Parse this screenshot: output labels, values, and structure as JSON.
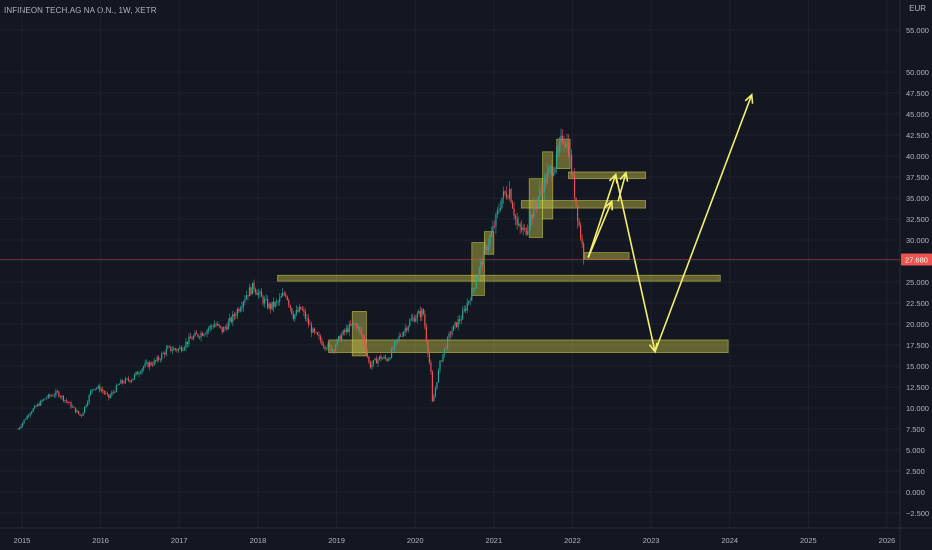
{
  "header": {
    "title": "INFINEON TECH.AG NA O.N., 1W, XETR",
    "currency": "EUR",
    "gear_icon": "settings-icon"
  },
  "colors": {
    "background": "#131722",
    "grid": "#1e222d",
    "up": "#26a69a",
    "down": "#ef5350",
    "zone": "#c7c34a",
    "arrow": "#f5ee6e",
    "price_line": "#ef5350"
  },
  "chart_data": {
    "type": "candlestick",
    "title": "INFINEON TECH.AG NA O.N., 1W, XETR",
    "ylim": [
      -3.5,
      58
    ],
    "xlim": [
      2014.9,
      2026.2
    ],
    "y_ticks": [
      -2.5,
      0,
      2.5,
      5,
      7.5,
      10,
      12.5,
      15,
      17.5,
      20,
      22.5,
      25,
      27.5,
      30,
      32.5,
      35,
      37.5,
      40,
      42.5,
      45,
      47.5,
      50,
      55
    ],
    "y_tick_labels": [
      "−2.500",
      "0.000",
      "2.500",
      "5.000",
      "7.500",
      "10.000",
      "12.500",
      "15.000",
      "17.500",
      "20.000",
      "22.500",
      "25.000",
      "27.500",
      "30.000",
      "32.500",
      "35.000",
      "37.500",
      "40.000",
      "42.500",
      "45.000",
      "47.500",
      "50.000",
      "55.000"
    ],
    "x_ticks": [
      2015,
      2016,
      2017,
      2018,
      2019,
      2020,
      2021,
      2022,
      2023,
      2024,
      2025,
      2026
    ],
    "x_tick_labels": [
      "2015",
      "2016",
      "2017",
      "2018",
      "2019",
      "2020",
      "2021",
      "2022",
      "2023",
      "2024",
      "2025",
      "2026"
    ],
    "last_price": 27.68,
    "last_price_label": "27.680",
    "price_path": [
      [
        2014.95,
        7.5
      ],
      [
        2015.1,
        9.5
      ],
      [
        2015.3,
        11.2
      ],
      [
        2015.45,
        11.8
      ],
      [
        2015.6,
        10.5
      ],
      [
        2015.75,
        9.0
      ],
      [
        2015.9,
        12.5
      ],
      [
        2016.0,
        12.3
      ],
      [
        2016.1,
        11.2
      ],
      [
        2016.25,
        13.0
      ],
      [
        2016.4,
        13.5
      ],
      [
        2016.55,
        15.0
      ],
      [
        2016.7,
        15.5
      ],
      [
        2016.85,
        17.0
      ],
      [
        2017.0,
        17.0
      ],
      [
        2017.15,
        18.3
      ],
      [
        2017.3,
        19.0
      ],
      [
        2017.45,
        20.0
      ],
      [
        2017.55,
        19.2
      ],
      [
        2017.7,
        21.0
      ],
      [
        2017.85,
        23.5
      ],
      [
        2017.95,
        24.5
      ],
      [
        2018.05,
        23.0
      ],
      [
        2018.15,
        22.0
      ],
      [
        2018.25,
        22.5
      ],
      [
        2018.35,
        23.8
      ],
      [
        2018.45,
        21.0
      ],
      [
        2018.55,
        21.8
      ],
      [
        2018.7,
        19.0
      ],
      [
        2018.85,
        17.5
      ],
      [
        2018.95,
        17.0
      ],
      [
        2019.05,
        18.5
      ],
      [
        2019.15,
        19.5
      ],
      [
        2019.25,
        20.0
      ],
      [
        2019.35,
        18.0
      ],
      [
        2019.42,
        15.0
      ],
      [
        2019.55,
        16.0
      ],
      [
        2019.65,
        15.8
      ],
      [
        2019.8,
        18.5
      ],
      [
        2019.95,
        20.5
      ],
      [
        2020.1,
        21.5
      ],
      [
        2020.2,
        14.0
      ],
      [
        2020.22,
        10.5
      ],
      [
        2020.32,
        15.5
      ],
      [
        2020.45,
        19.0
      ],
      [
        2020.6,
        21.0
      ],
      [
        2020.75,
        24.5
      ],
      [
        2020.9,
        29.0
      ],
      [
        2021.0,
        31.5
      ],
      [
        2021.1,
        35.0
      ],
      [
        2021.2,
        36.0
      ],
      [
        2021.3,
        31.5
      ],
      [
        2021.4,
        31.0
      ],
      [
        2021.5,
        33.5
      ],
      [
        2021.6,
        36.0
      ],
      [
        2021.7,
        38.0
      ],
      [
        2021.8,
        39.5
      ],
      [
        2021.88,
        42.5
      ],
      [
        2021.95,
        41.0
      ],
      [
        2022.0,
        37.5
      ],
      [
        2022.08,
        32.0
      ],
      [
        2022.15,
        27.7
      ]
    ],
    "zones": [
      {
        "x0": 2018.25,
        "x1": 2023.88,
        "y0": 25.1,
        "y1": 25.8
      },
      {
        "x0": 2022.15,
        "x1": 2022.72,
        "y0": 27.7,
        "y1": 28.5
      },
      {
        "x0": 2021.35,
        "x1": 2022.93,
        "y0": 33.8,
        "y1": 34.7
      },
      {
        "x0": 2021.95,
        "x1": 2022.93,
        "y0": 37.3,
        "y1": 38.1
      },
      {
        "x0": 2018.9,
        "x1": 2023.98,
        "y0": 16.6,
        "y1": 18.1
      },
      {
        "x0": 2020.72,
        "x1": 2020.88,
        "y0": 23.4,
        "y1": 29.7
      },
      {
        "x0": 2020.88,
        "x1": 2021.0,
        "y0": 28.3,
        "y1": 31.0
      },
      {
        "x0": 2019.2,
        "x1": 2019.38,
        "y0": 16.2,
        "y1": 21.5
      },
      {
        "x0": 2021.45,
        "x1": 2021.62,
        "y0": 30.3,
        "y1": 37.3
      },
      {
        "x0": 2021.62,
        "x1": 2021.75,
        "y0": 32.5,
        "y1": 40.5
      },
      {
        "x0": 2021.8,
        "x1": 2021.97,
        "y0": 38.5,
        "y1": 42.0
      }
    ],
    "arrows": [
      [
        [
          2022.2,
          27.9
        ],
        [
          2022.55,
          37.8
        ]
      ],
      [
        [
          2022.2,
          27.9
        ],
        [
          2022.5,
          34.6
        ]
      ],
      [
        [
          2022.58,
          34.6
        ],
        [
          2022.68,
          38.0
        ]
      ],
      [
        [
          2022.55,
          37.8
        ],
        [
          2023.05,
          16.7
        ]
      ],
      [
        [
          2023.05,
          16.7
        ],
        [
          2024.28,
          47.3
        ]
      ]
    ]
  }
}
